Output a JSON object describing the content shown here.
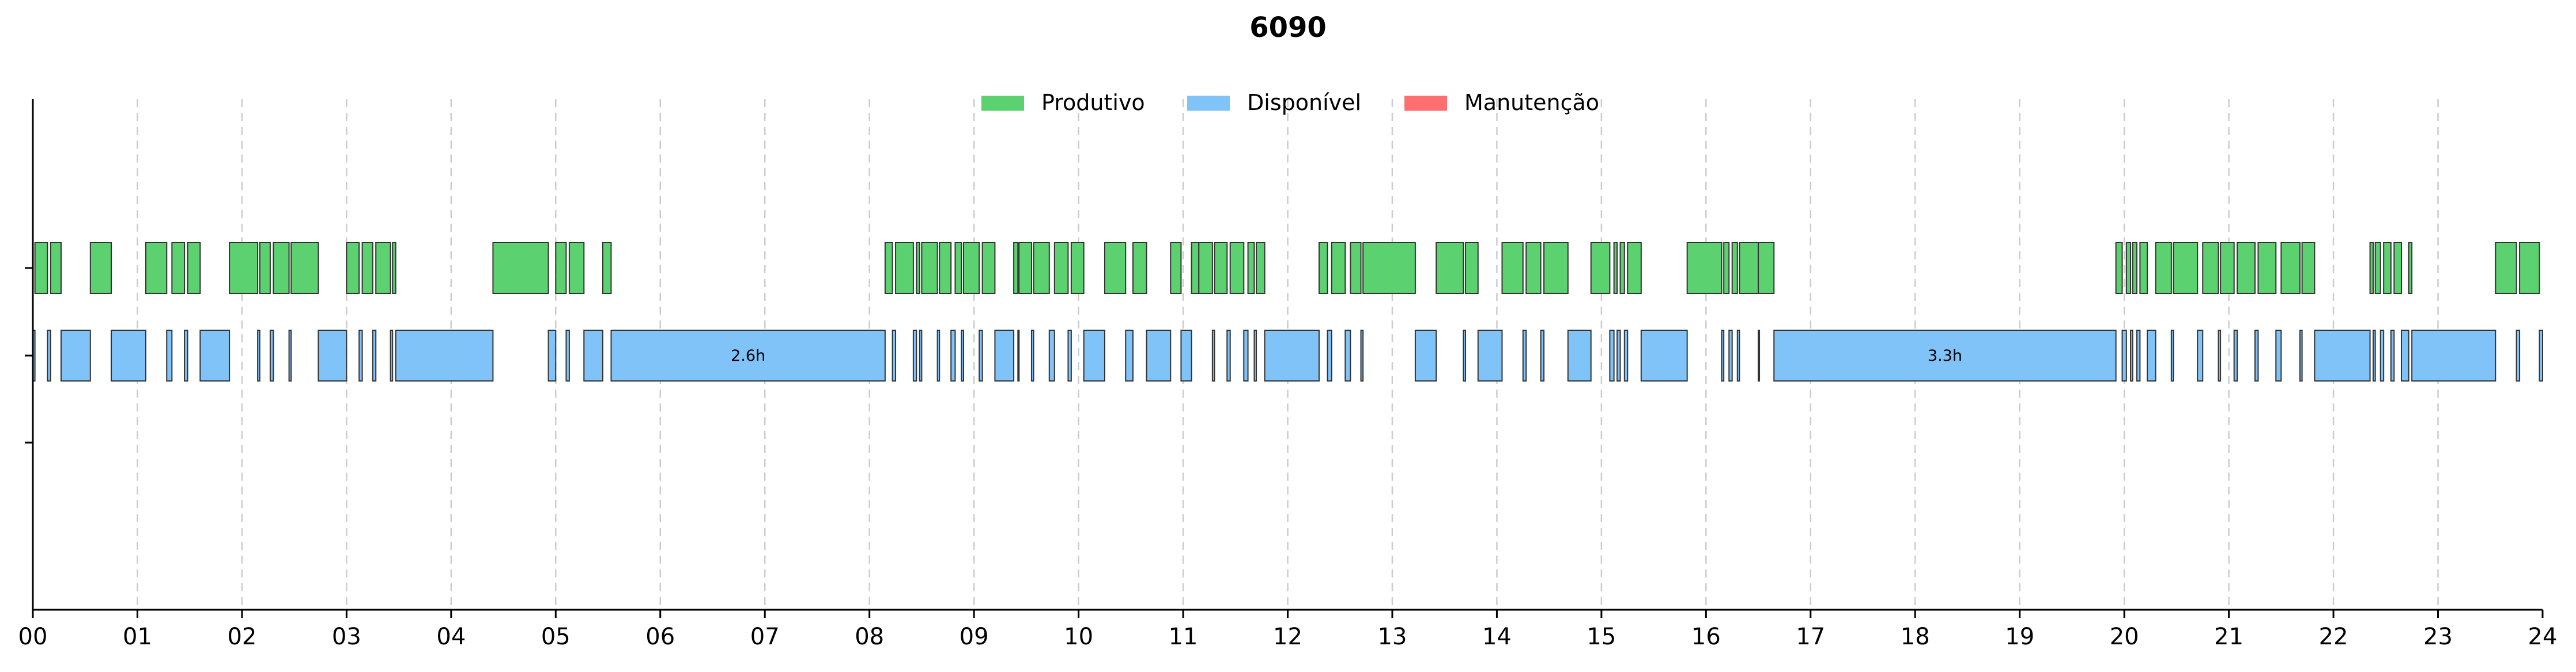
{
  "chart_data": {
    "type": "timeline",
    "title": "6090",
    "xlim": [
      0,
      24
    ],
    "x_tick_labels": [
      "00",
      "01",
      "02",
      "03",
      "04",
      "05",
      "06",
      "07",
      "08",
      "09",
      "10",
      "11",
      "12",
      "13",
      "14",
      "15",
      "16",
      "17",
      "18",
      "19",
      "20",
      "21",
      "22",
      "23",
      "24"
    ],
    "grid": "vertical dashed",
    "legend_position": "top-center",
    "legend": [
      {
        "name": "Produtivo",
        "color": "#5cd16f"
      },
      {
        "name": "Disponível",
        "color": "#80c3f9"
      },
      {
        "name": "Manutenção",
        "color": "#ff6f6f"
      }
    ],
    "rows": [
      "Produtivo",
      "Disponível",
      "Manutenção"
    ],
    "series": [
      {
        "name": "Produtivo",
        "color": "#5cd16f",
        "intervals": [
          [
            0.02,
            0.14
          ],
          [
            0.17,
            0.27
          ],
          [
            0.55,
            0.75
          ],
          [
            1.08,
            1.28
          ],
          [
            1.33,
            1.45
          ],
          [
            1.48,
            1.6
          ],
          [
            1.88,
            2.15
          ],
          [
            2.17,
            2.27
          ],
          [
            2.3,
            2.45
          ],
          [
            2.47,
            2.73
          ],
          [
            3.0,
            3.12
          ],
          [
            3.15,
            3.25
          ],
          [
            3.28,
            3.42
          ],
          [
            3.44,
            3.47
          ],
          [
            4.4,
            4.93
          ],
          [
            5.0,
            5.1
          ],
          [
            5.13,
            5.27
          ],
          [
            5.45,
            5.53
          ],
          [
            8.15,
            8.22
          ],
          [
            8.25,
            8.42
          ],
          [
            8.45,
            8.48
          ],
          [
            8.5,
            8.65
          ],
          [
            8.67,
            8.78
          ],
          [
            8.82,
            8.88
          ],
          [
            8.9,
            9.05
          ],
          [
            9.08,
            9.2
          ],
          [
            9.38,
            9.42
          ],
          [
            9.43,
            9.55
          ],
          [
            9.57,
            9.72
          ],
          [
            9.77,
            9.9
          ],
          [
            9.93,
            10.05
          ],
          [
            10.25,
            10.45
          ],
          [
            10.52,
            10.65
          ],
          [
            10.88,
            10.98
          ],
          [
            11.08,
            11.15
          ],
          [
            11.15,
            11.28
          ],
          [
            11.3,
            11.42
          ],
          [
            11.45,
            11.58
          ],
          [
            11.62,
            11.68
          ],
          [
            11.7,
            11.78
          ],
          [
            12.3,
            12.38
          ],
          [
            12.42,
            12.55
          ],
          [
            12.6,
            12.7
          ],
          [
            12.72,
            13.22
          ],
          [
            13.42,
            13.68
          ],
          [
            13.7,
            13.82
          ],
          [
            14.05,
            14.25
          ],
          [
            14.28,
            14.42
          ],
          [
            14.45,
            14.68
          ],
          [
            14.9,
            15.08
          ],
          [
            15.12,
            15.15
          ],
          [
            15.18,
            15.22
          ],
          [
            15.25,
            15.38
          ],
          [
            15.82,
            16.15
          ],
          [
            16.17,
            16.22
          ],
          [
            16.25,
            16.3
          ],
          [
            16.32,
            16.5
          ],
          [
            16.5,
            16.65
          ],
          [
            19.92,
            19.98
          ],
          [
            20.02,
            20.06
          ],
          [
            20.08,
            20.12
          ],
          [
            20.15,
            20.22
          ],
          [
            20.3,
            20.45
          ],
          [
            20.47,
            20.7
          ],
          [
            20.75,
            20.9
          ],
          [
            20.92,
            21.05
          ],
          [
            21.08,
            21.25
          ],
          [
            21.28,
            21.45
          ],
          [
            21.5,
            21.68
          ],
          [
            21.7,
            21.82
          ],
          [
            22.35,
            22.38
          ],
          [
            22.4,
            22.45
          ],
          [
            22.48,
            22.55
          ],
          [
            22.58,
            22.65
          ],
          [
            22.72,
            22.75
          ],
          [
            23.55,
            23.75
          ],
          [
            23.78,
            23.97
          ]
        ]
      },
      {
        "name": "Disponível",
        "color": "#80c3f9",
        "intervals": [
          [
            0.0,
            0.02
          ],
          [
            0.14,
            0.17
          ],
          [
            0.27,
            0.55
          ],
          [
            0.75,
            1.08
          ],
          [
            1.28,
            1.33
          ],
          [
            1.45,
            1.48
          ],
          [
            1.6,
            1.88
          ],
          [
            2.15,
            2.17
          ],
          [
            2.27,
            2.3
          ],
          [
            2.45,
            2.47
          ],
          [
            2.73,
            3.0
          ],
          [
            3.12,
            3.15
          ],
          [
            3.25,
            3.28
          ],
          [
            3.42,
            3.44
          ],
          [
            3.47,
            4.4
          ],
          [
            4.93,
            5.0
          ],
          [
            5.1,
            5.13
          ],
          [
            5.27,
            5.45
          ],
          [
            5.53,
            8.15
          ],
          [
            8.22,
            8.25
          ],
          [
            8.42,
            8.45
          ],
          [
            8.48,
            8.5
          ],
          [
            8.65,
            8.67
          ],
          [
            8.78,
            8.82
          ],
          [
            8.88,
            8.9
          ],
          [
            9.05,
            9.08
          ],
          [
            9.2,
            9.38
          ],
          [
            9.42,
            9.43
          ],
          [
            9.55,
            9.57
          ],
          [
            9.72,
            9.77
          ],
          [
            9.9,
            9.93
          ],
          [
            10.05,
            10.25
          ],
          [
            10.45,
            10.52
          ],
          [
            10.65,
            10.88
          ],
          [
            10.98,
            11.08
          ],
          [
            11.28,
            11.3
          ],
          [
            11.42,
            11.45
          ],
          [
            11.58,
            11.62
          ],
          [
            11.68,
            11.7
          ],
          [
            11.78,
            12.3
          ],
          [
            12.38,
            12.42
          ],
          [
            12.55,
            12.6
          ],
          [
            12.7,
            12.72
          ],
          [
            13.22,
            13.42
          ],
          [
            13.68,
            13.7
          ],
          [
            13.82,
            14.05
          ],
          [
            14.25,
            14.28
          ],
          [
            14.42,
            14.45
          ],
          [
            14.68,
            14.9
          ],
          [
            15.08,
            15.12
          ],
          [
            15.15,
            15.18
          ],
          [
            15.22,
            15.25
          ],
          [
            15.38,
            15.82
          ],
          [
            16.15,
            16.17
          ],
          [
            16.22,
            16.25
          ],
          [
            16.3,
            16.32
          ],
          [
            16.5,
            16.5
          ],
          [
            16.65,
            19.92
          ],
          [
            19.98,
            20.02
          ],
          [
            20.06,
            20.08
          ],
          [
            20.12,
            20.15
          ],
          [
            20.22,
            20.3
          ],
          [
            20.45,
            20.47
          ],
          [
            20.7,
            20.75
          ],
          [
            20.9,
            20.92
          ],
          [
            21.05,
            21.08
          ],
          [
            21.25,
            21.28
          ],
          [
            21.45,
            21.5
          ],
          [
            21.68,
            21.7
          ],
          [
            21.82,
            22.35
          ],
          [
            22.38,
            22.4
          ],
          [
            22.45,
            22.48
          ],
          [
            22.55,
            22.58
          ],
          [
            22.65,
            22.72
          ],
          [
            22.75,
            23.55
          ],
          [
            23.75,
            23.78
          ],
          [
            23.97,
            24.0
          ]
        ],
        "annotations": [
          {
            "text": "2.6h",
            "start": 5.53,
            "end": 8.15
          },
          {
            "text": "3.3h",
            "start": 16.65,
            "end": 19.92
          }
        ]
      },
      {
        "name": "Manutenção",
        "color": "#ff6f6f",
        "intervals": []
      }
    ]
  }
}
